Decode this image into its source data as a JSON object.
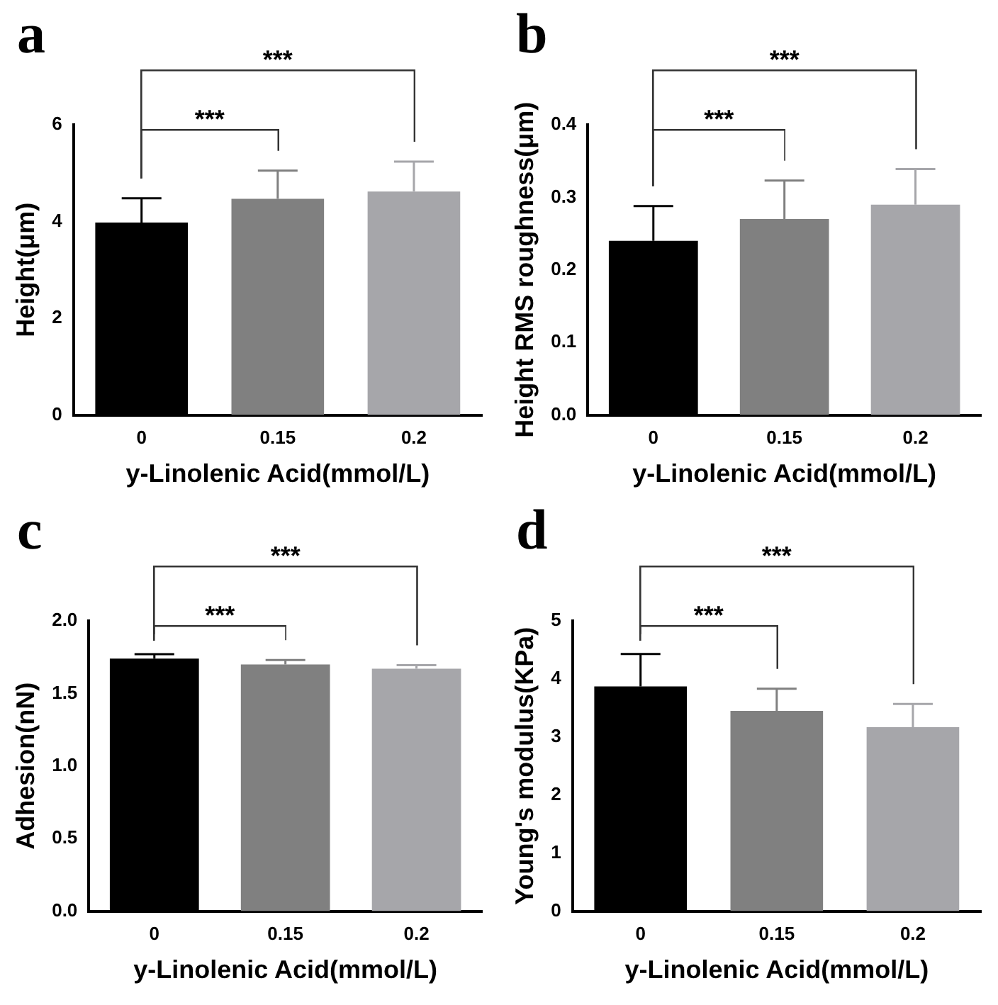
{
  "chart_data": [
    {
      "type": "bar",
      "title": "a",
      "xlabel": "y-Linolenic Acid(mmol/L)",
      "ylabel": "Height(μm)",
      "categories": [
        "0",
        "0.15",
        "0.2"
      ],
      "values": [
        3.98,
        4.47,
        4.62
      ],
      "colors": [
        "#000000",
        "#808080",
        "#a6a6aa"
      ],
      "errors": [
        [
          3.98,
          4.48
        ],
        [
          4.47,
          5.05
        ],
        [
          4.62,
          5.24
        ]
      ],
      "ylim": [
        0,
        6
      ],
      "yticks": [
        0,
        2,
        4,
        6
      ],
      "annotations": [
        "***",
        "***"
      ]
    },
    {
      "type": "bar",
      "title": "b",
      "xlabel": "y-Linolenic Acid(mmol/L)",
      "ylabel": "Height RMS roughness(μm)",
      "categories": [
        "0",
        "0.15",
        "0.2"
      ],
      "values": [
        0.24,
        0.27,
        0.29
      ],
      "colors": [
        "#000000",
        "#808080",
        "#a6a6aa"
      ],
      "errors": [
        [
          0.24,
          0.288
        ],
        [
          0.27,
          0.323
        ],
        [
          0.29,
          0.339
        ]
      ],
      "ylim": [
        0,
        0.4
      ],
      "yticks": [
        {
          "value": 0,
          "label": "0.0"
        },
        0.1,
        0.2,
        0.3,
        0.4
      ],
      "annotations": [
        "***",
        "***"
      ]
    },
    {
      "type": "bar",
      "title": "c",
      "xlabel": "y-Linolenic Acid(mmol/L)",
      "ylabel": "Adhesion(nN)",
      "categories": [
        "0",
        "0.15",
        "0.2"
      ],
      "values": [
        1.74,
        1.7,
        1.67
      ],
      "colors": [
        "#000000",
        "#808080",
        "#a6a6aa"
      ],
      "errors": [
        [
          1.74,
          1.77
        ],
        [
          1.7,
          1.73
        ],
        [
          1.67,
          1.695
        ]
      ],
      "ylim": [
        0,
        2
      ],
      "yticks": [
        {
          "value": 0,
          "label": "0.0"
        },
        0.5,
        {
          "value": 1,
          "label": "1.0"
        },
        1.5,
        {
          "value": 2,
          "label": "2.0"
        }
      ],
      "annotations": [
        "***",
        "***"
      ]
    },
    {
      "type": "bar",
      "title": "d",
      "xlabel": "y-Linolenic Acid(mmol/L)",
      "ylabel": "Young's modulus(KPa)",
      "categories": [
        "0",
        "0.15",
        "0.2"
      ],
      "values": [
        3.87,
        3.45,
        3.17
      ],
      "colors": [
        "#000000",
        "#808080",
        "#a6a6aa"
      ],
      "errors": [
        [
          3.87,
          4.43
        ],
        [
          3.45,
          3.83
        ],
        [
          3.17,
          3.57
        ]
      ],
      "ylim": [
        0,
        5
      ],
      "yticks": [
        0,
        1,
        2,
        3,
        4,
        5
      ],
      "annotations": [
        "***",
        "***"
      ]
    }
  ]
}
